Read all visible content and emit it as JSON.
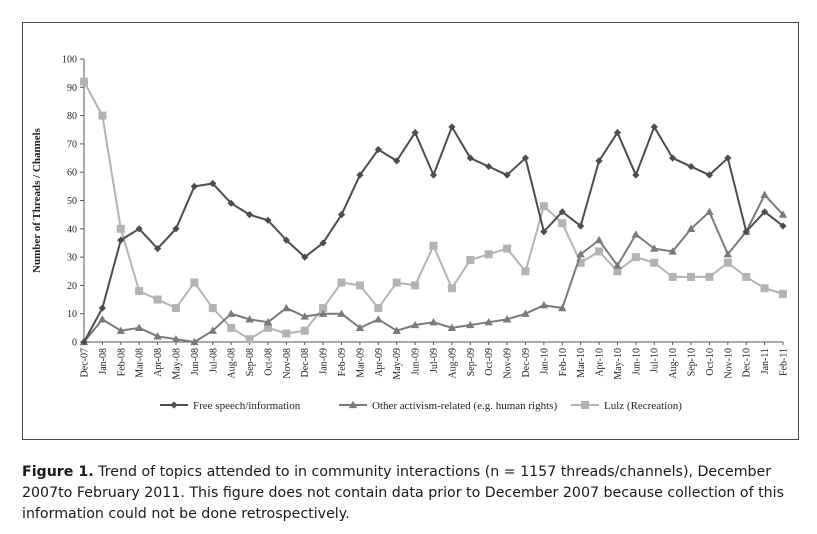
{
  "chart_data": {
    "type": "line",
    "title": "",
    "xlabel": "",
    "ylabel": "Number of Threads / Channels",
    "ylim": [
      0,
      100
    ],
    "yticks": [
      0,
      10,
      20,
      30,
      40,
      50,
      60,
      70,
      80,
      90,
      100
    ],
    "grid": false,
    "legend_position": "bottom",
    "categories": [
      "Dec-07",
      "Jan-08",
      "Feb-08",
      "Mar-08",
      "Apr-08",
      "May-08",
      "Jun-08",
      "Jul-08",
      "Aug-08",
      "Sep-08",
      "Oct-08",
      "Nov-08",
      "Dec-08",
      "Jan-09",
      "Feb-09",
      "Mar-09",
      "Apr-09",
      "May-09",
      "Jun-09",
      "Jul-09",
      "Aug-09",
      "Sep-09",
      "Oct-09",
      "Nov-09",
      "Dec-09",
      "Jan-10",
      "Feb-10",
      "Mar-10",
      "Apr-10",
      "May-10",
      "Jun-10",
      "Jul-10",
      "Aug-10",
      "Sep-10",
      "Oct-10",
      "Nov-10",
      "Dec-10",
      "Jan-11",
      "Feb-11"
    ],
    "series": [
      {
        "name": "Free speech/information",
        "color": "#4d4d4d",
        "marker": "diamond",
        "values": [
          0,
          12,
          36,
          40,
          33,
          40,
          55,
          56,
          49,
          45,
          43,
          36,
          30,
          35,
          45,
          59,
          68,
          64,
          74,
          59,
          76,
          65,
          62,
          59,
          65,
          39,
          46,
          41,
          64,
          74,
          59,
          76,
          65,
          62,
          59,
          65,
          39,
          46,
          41
        ]
      },
      {
        "name": "Other activism-related (e.g. human rights)",
        "color": "#7a7a7a",
        "marker": "triangle",
        "values": [
          0,
          8,
          4,
          5,
          2,
          1,
          0,
          4,
          10,
          8,
          7,
          12,
          9,
          10,
          10,
          5,
          8,
          4,
          6,
          7,
          5,
          6,
          7,
          8,
          10,
          13,
          12,
          31,
          36,
          27,
          38,
          33,
          32,
          40,
          46,
          31,
          39,
          52,
          45
        ]
      },
      {
        "name": "Lulz (Recreation)",
        "color": "#b3b3b3",
        "marker": "square",
        "values": [
          92,
          80,
          40,
          18,
          15,
          12,
          21,
          12,
          5,
          1,
          5,
          3,
          4,
          12,
          21,
          20,
          12,
          21,
          20,
          34,
          19,
          29,
          31,
          33,
          25,
          48,
          42,
          28,
          32,
          25,
          30,
          28,
          23,
          23,
          23,
          28,
          23,
          19,
          17
        ]
      }
    ]
  },
  "caption": {
    "label": "Figure 1.",
    "text": " Trend of topics attended to in community interactions (n = 1157 threads/channels), December 2007to February 2011. This figure does not contain data prior to December 2007 because collection of this information could not be done retrospectively."
  }
}
